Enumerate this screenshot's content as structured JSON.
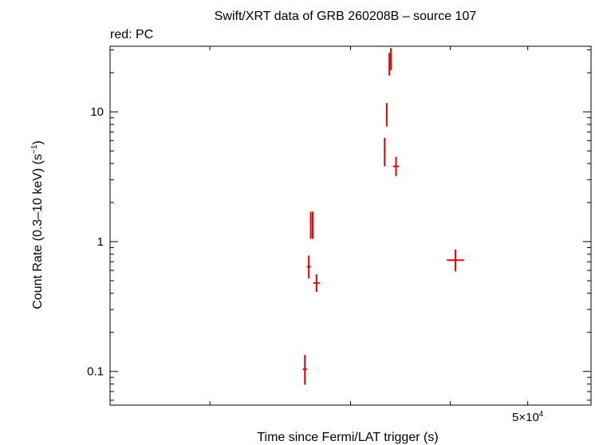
{
  "chart_data": {
    "type": "scatter",
    "title": "Swift/XRT data of GRB 260208B – source 107",
    "subtitle": "red: PC",
    "xlabel": "Time since Fermi/LAT trigger (s)",
    "ylabel": "Count Rate (0.3–10 keV) (s",
    "ylabel_sup": "−1",
    "ylabel_tail": ")",
    "x_scale": "log",
    "y_scale": "log",
    "xlim": [
      15000,
      60000
    ],
    "ylim": [
      0.055,
      32
    ],
    "y_ticks": [
      {
        "value": 0.1,
        "label": "0.1"
      },
      {
        "value": 1,
        "label": "1"
      },
      {
        "value": 10,
        "label": "10"
      }
    ],
    "x_tick_label": {
      "base": "5×10",
      "exp": "4"
    },
    "series_color": "#ee0000",
    "series": [
      {
        "name": "PC",
        "points": [
          {
            "x": 26300,
            "xerr": [
              150,
              150
            ],
            "y": 0.104,
            "yerr": [
              0.025,
              0.03
            ]
          },
          {
            "x": 26600,
            "xerr": [
              150,
              150
            ],
            "y": 0.64,
            "yerr": [
              0.12,
              0.14
            ]
          },
          {
            "x": 26750,
            "xerr": [
              60,
              60
            ],
            "y": 1.35,
            "yerr": [
              0.3,
              0.35
            ]
          },
          {
            "x": 26900,
            "xerr": [
              60,
              60
            ],
            "y": 1.35,
            "yerr": [
              0.3,
              0.35
            ]
          },
          {
            "x": 27200,
            "xerr": [
              250,
              250
            ],
            "y": 0.48,
            "yerr": [
              0.07,
              0.08
            ]
          },
          {
            "x": 33100,
            "xerr": [
              80,
              80
            ],
            "y": 5.0,
            "yerr": [
              1.2,
              1.3
            ]
          },
          {
            "x": 33300,
            "xerr": [
              80,
              80
            ],
            "y": 9.5,
            "yerr": [
              1.8,
              2.2
            ]
          },
          {
            "x": 33550,
            "xerr": [
              80,
              80
            ],
            "y": 23.5,
            "yerr": [
              4.5,
              5.0
            ]
          },
          {
            "x": 33700,
            "xerr": [
              80,
              80
            ],
            "y": 25.5,
            "yerr": [
              4.5,
              5.5
            ]
          },
          {
            "x": 34200,
            "xerr": [
              300,
              300
            ],
            "y": 3.8,
            "yerr": [
              0.6,
              0.7
            ]
          },
          {
            "x": 40600,
            "xerr": [
              1000,
              1000
            ],
            "y": 0.72,
            "yerr": [
              0.13,
              0.15
            ]
          }
        ]
      }
    ],
    "grid": false,
    "legend": "none"
  }
}
